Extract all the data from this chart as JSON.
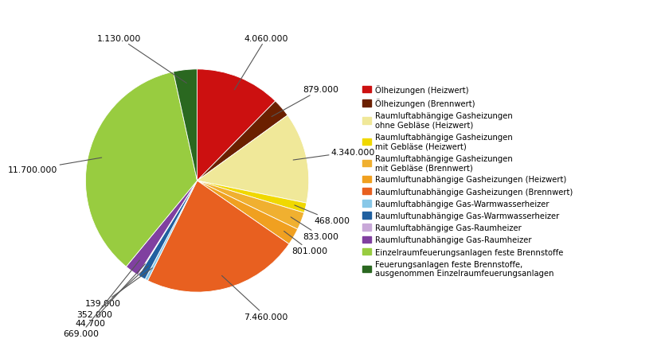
{
  "labels": [
    "Ölheizungen (Heizwert)",
    "Ölheizungen (Brennwert)",
    "Raumluftabhängige Gasheizungen\nohne Gebläse (Heizwert)",
    "Raumluftabhängige Gasheizungen\nmit Gebläse (Heizwert)",
    "Raumluftabhängige Gasheizungen\nmit Gebläse (Brennwert)",
    "Raumluftunabhängige Gasheizungen (Heizwert)",
    "Raumluftunabhängige Gasheizungen (Brennwert)",
    "Raumluftabhängige Gas-Warmwasserheizer",
    "Raumluftunabhängige Gas-Warmwasserheizer",
    "Raumluftabhängige Gas-Raumheizer",
    "Raumluftunabhängige Gas-Raumheizer",
    "Einzelraumfeuerungsanlagen feste Brennstoffe",
    "Feuerungsanlagen feste Brennstoffe,\nausgenommen Einzelraumfeuerungsanlagen"
  ],
  "values": [
    4060000,
    879000,
    4340000,
    468000,
    833000,
    801000,
    7460000,
    139000,
    352000,
    44700,
    669000,
    11700000,
    1130000
  ],
  "colors": [
    "#cc1010",
    "#6b2000",
    "#f0e899",
    "#f0d800",
    "#f0b030",
    "#f0a020",
    "#e86020",
    "#88c8e8",
    "#2060a0",
    "#c8a8d8",
    "#8040a0",
    "#98cc40",
    "#2a6820"
  ],
  "annotations": [
    "4.060.000",
    "879.000",
    "4.340.000",
    "468.000",
    "833.000",
    "801.000",
    "7.460.000",
    "139.000",
    "352.000",
    "44.700",
    "669.000",
    "11.700.000",
    "1.130.000"
  ],
  "background_color": "#ffffff"
}
